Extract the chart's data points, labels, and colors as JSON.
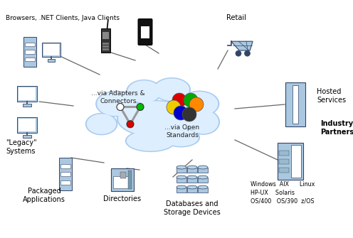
{
  "bg_color": "#ffffff",
  "cloud_color": "#ddeeff",
  "cloud_border": "#aaccee",
  "icon_blue": "#7799bb",
  "icon_fill": "#aac8e0",
  "icon_dark": "#334466",
  "line_color": "#666666",
  "labels": {
    "browsers": "Browsers, .NET Clients, Java Clients",
    "retail": "Retail",
    "hosted": "Hosted\nServices",
    "industry": "Industry\nPartners",
    "legacy": "\"Legacy\"\nSystems",
    "packaged": "Packaged\nApplications",
    "directories": "Directories",
    "databases": "Databases and\nStorage Devices",
    "adapters": "...via Adapters &\nConnectors",
    "open": "...via Open\nStandards",
    "os_line1": "Windows  AIX      Linux",
    "os_line2": "HP-UX    Solaris",
    "os_line3": "OS/400   OS/390  z/OS"
  }
}
